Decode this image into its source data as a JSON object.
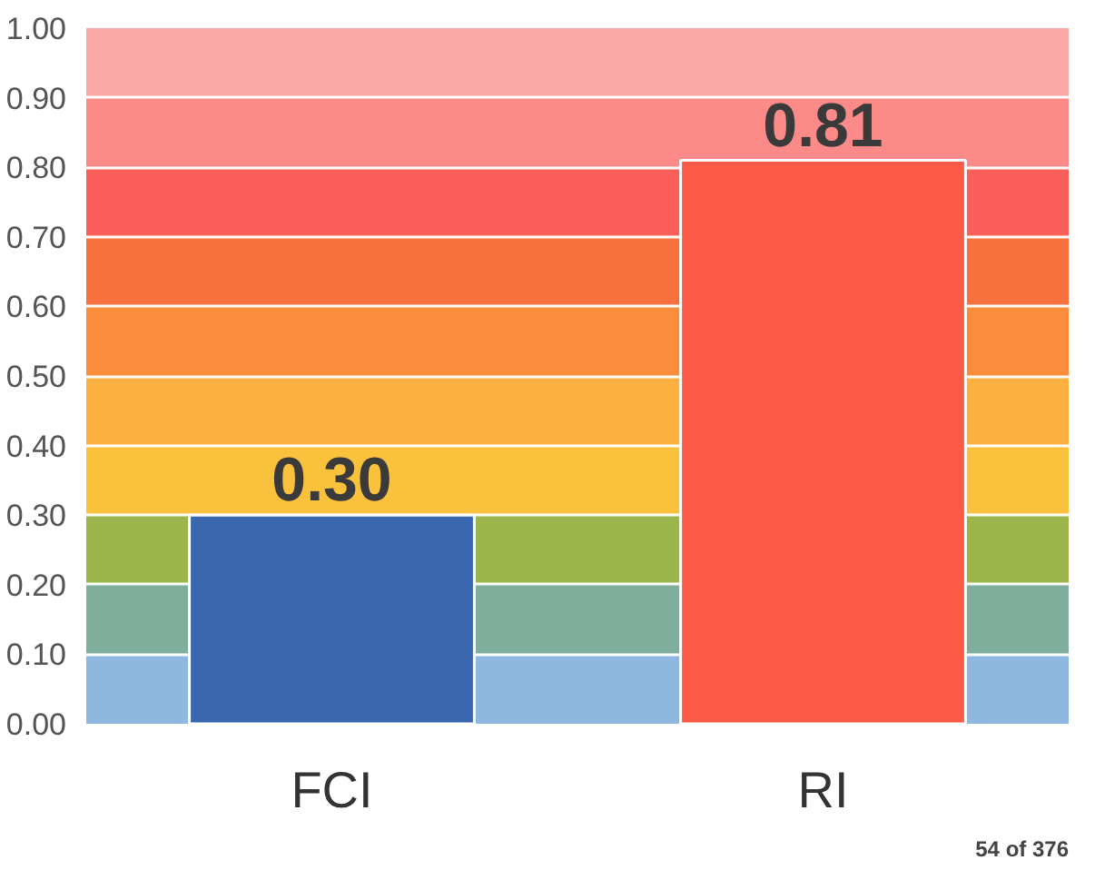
{
  "chart_data": {
    "type": "bar",
    "categories": [
      "FCI",
      "RI"
    ],
    "values": [
      0.3,
      0.81
    ],
    "colors": [
      "#3a67b0",
      "#fb5a47"
    ],
    "value_labels": [
      "0.30",
      "0.81"
    ],
    "ylim": [
      0,
      1
    ],
    "yticks": [
      {
        "value": 0,
        "label": "0.00"
      },
      {
        "value": 0.1,
        "label": "0.10"
      },
      {
        "value": 0.2,
        "label": "0.20"
      },
      {
        "value": 0.3,
        "label": "0.30"
      },
      {
        "value": 0.4,
        "label": "0.40"
      },
      {
        "value": 0.5,
        "label": "0.50"
      },
      {
        "value": 0.6,
        "label": "0.60"
      },
      {
        "value": 0.7,
        "label": "0.70"
      },
      {
        "value": 0.8,
        "label": "0.80"
      },
      {
        "value": 0.9,
        "label": "0.90"
      },
      {
        "value": 1,
        "label": "1.00"
      }
    ],
    "grid": "y",
    "bands": [
      {
        "axis": "y",
        "from": 0,
        "to": 0.1,
        "color": "#8fb8e0"
      },
      {
        "axis": "y",
        "from": 0.1,
        "to": 0.2,
        "color": "#7fae9c"
      },
      {
        "axis": "y",
        "from": 0.2,
        "to": 0.3,
        "color": "#9db64c"
      },
      {
        "axis": "y",
        "from": 0.3,
        "to": 0.4,
        "color": "#f9c13c"
      },
      {
        "axis": "y",
        "from": 0.4,
        "to": 0.5,
        "color": "#fbb040"
      },
      {
        "axis": "y",
        "from": 0.5,
        "to": 0.6,
        "color": "#fb8c3c"
      },
      {
        "axis": "y",
        "from": 0.6,
        "to": 0.7,
        "color": "#f7703e"
      },
      {
        "axis": "y",
        "from": 0.7,
        "to": 0.8,
        "color": "#fb5f5a"
      },
      {
        "axis": "y",
        "from": 0.8,
        "to": 0.9,
        "color": "#fb8a88"
      },
      {
        "axis": "y",
        "from": 0.9,
        "to": 1.0,
        "color": "#fba7a6"
      }
    ],
    "annotations": [
      "54 of 376"
    ]
  }
}
